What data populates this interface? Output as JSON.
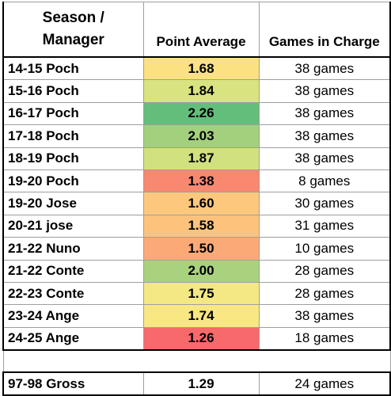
{
  "header": {
    "season_line1": "Season /",
    "season_line2": "Manager",
    "point_average": "Point Average",
    "games_in_charge": "Games in Charge"
  },
  "rows": [
    {
      "season": "14-15 Poch",
      "avg": "1.68",
      "games": "38 games",
      "color": "#fbe182"
    },
    {
      "season": "15-16 Poch",
      "avg": "1.84",
      "games": "38 games",
      "color": "#d9e37f"
    },
    {
      "season": "16-17 Poch",
      "avg": "2.26",
      "games": "38 games",
      "color": "#63be7b"
    },
    {
      "season": "17-18 Poch",
      "avg": "2.03",
      "games": "38 games",
      "color": "#a2d07d"
    },
    {
      "season": "18-19 Poch",
      "avg": "1.87",
      "games": "38 games",
      "color": "#d2e17f"
    },
    {
      "season": "19-20 Poch",
      "avg": "1.38",
      "games": "8 games",
      "color": "#f98870"
    },
    {
      "season": "19-20 Jose",
      "avg": "1.60",
      "games": "30 games",
      "color": "#fdc87d"
    },
    {
      "season": "20-21 jose",
      "avg": "1.58",
      "games": "31 games",
      "color": "#fdc37c"
    },
    {
      "season": "21-22 Nuno",
      "avg": "1.50",
      "games": "10 games",
      "color": "#fbaa77"
    },
    {
      "season": "21-22 Conte",
      "avg": "2.00",
      "games": "28 games",
      "color": "#a9d27f"
    },
    {
      "season": "22-23 Conte",
      "avg": "1.75",
      "games": "28 games",
      "color": "#f4e884"
    },
    {
      "season": "23-24 Ange",
      "avg": "1.74",
      "games": "38 games",
      "color": "#f9e784"
    },
    {
      "season": "24-25 Ange",
      "avg": "1.26",
      "games": "18 games",
      "color": "#f8696b"
    }
  ],
  "footer_row": {
    "season": "97-98 Gross",
    "avg": "1.29",
    "games": "24 games"
  }
}
